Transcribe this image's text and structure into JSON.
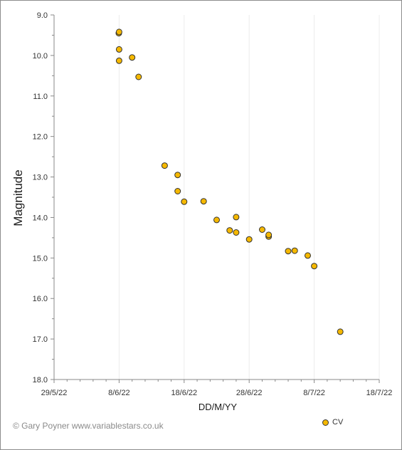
{
  "chart_data": {
    "type": "scatter",
    "title": "",
    "xlabel": "DD/M/YY",
    "ylabel": "Magnitude",
    "x_ticks": [
      "29/5/22",
      "8/6/22",
      "18/6/22",
      "28/6/22",
      "8/7/22",
      "18/7/22"
    ],
    "xlim": [
      "2022-05-29",
      "2022-07-18"
    ],
    "ylim": [
      9.0,
      18.0
    ],
    "y_inverted": true,
    "y_ticks": [
      "9.0",
      "10.0",
      "11.0",
      "12.0",
      "13.0",
      "14.0",
      "15.0",
      "16.0",
      "17.0",
      "18.0"
    ],
    "grid": true,
    "legend_position": "bottom-right",
    "series": [
      {
        "name": "CV",
        "color": "#f5b800",
        "points": [
          {
            "x": "2022-06-07T23:00",
            "y": 9.45
          },
          {
            "x": "2022-06-08T00:00",
            "y": 9.42
          },
          {
            "x": "2022-06-08T00:00",
            "y": 9.85
          },
          {
            "x": "2022-06-08T00:00",
            "y": 10.13
          },
          {
            "x": "2022-06-10T00:00",
            "y": 10.05
          },
          {
            "x": "2022-06-11T00:00",
            "y": 10.53
          },
          {
            "x": "2022-06-15T00:00",
            "y": 12.72
          },
          {
            "x": "2022-06-17T00:00",
            "y": 12.95
          },
          {
            "x": "2022-06-17T00:00",
            "y": 13.35
          },
          {
            "x": "2022-06-18T00:00",
            "y": 13.61
          },
          {
            "x": "2022-06-21T00:00",
            "y": 13.6
          },
          {
            "x": "2022-06-23T00:00",
            "y": 14.06
          },
          {
            "x": "2022-06-25T00:00",
            "y": 14.32
          },
          {
            "x": "2022-06-26T00:00",
            "y": 14.37
          },
          {
            "x": "2022-06-26T00:00",
            "y": 13.99
          },
          {
            "x": "2022-06-28T00:00",
            "y": 14.54
          },
          {
            "x": "2022-06-30T00:00",
            "y": 14.3
          },
          {
            "x": "2022-07-01T00:00",
            "y": 14.47
          },
          {
            "x": "2022-07-01T00:00",
            "y": 14.43
          },
          {
            "x": "2022-07-04T00:00",
            "y": 14.83
          },
          {
            "x": "2022-07-05T00:00",
            "y": 14.82
          },
          {
            "x": "2022-07-07T00:00",
            "y": 14.94
          },
          {
            "x": "2022-07-08T00:00",
            "y": 15.2
          },
          {
            "x": "2022-07-12T00:00",
            "y": 16.82
          }
        ]
      }
    ]
  },
  "copyright": "© Gary Poyner  www.variablestars.co.uk",
  "legend": {
    "label": "CV"
  }
}
